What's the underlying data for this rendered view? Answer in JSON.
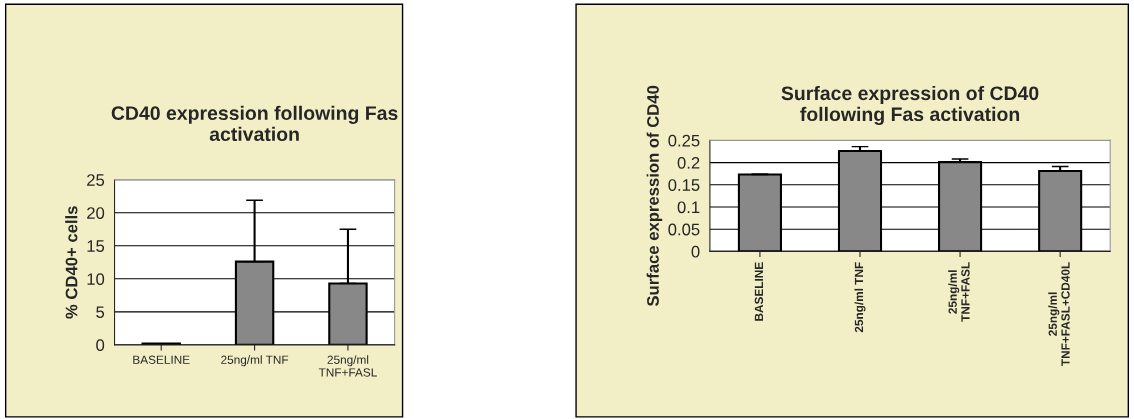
{
  "chart_data": [
    {
      "type": "bar",
      "title": "CD40 expression following Fas\nactivation",
      "ylabel": "% CD40+ cells",
      "categories": [
        "BASELINE",
        "25ng/ml TNF",
        "25ng/ml\nTNF+FASL"
      ],
      "values": [
        0.2,
        12.6,
        9.3
      ],
      "errors": [
        null,
        [
          12.6,
          21.9
        ],
        [
          9.3,
          17.5
        ]
      ],
      "color": "#888888",
      "ylim": [
        0,
        25
      ],
      "yticks": [
        0,
        5,
        10,
        15,
        20,
        25
      ],
      "grid": "y"
    },
    {
      "type": "bar",
      "title": "Surface expression of CD40\nfollowing Fas activation",
      "ylabel": "Surface expression of CD40",
      "categories": [
        "BASELINE",
        "25ng/ml TNF",
        "25ng/ml\nTNF+FASL",
        "25ng/ml\nTNF+FASL+CD40L"
      ],
      "values": [
        0.173,
        0.226,
        0.201,
        0.181
      ],
      "errors": [
        [
          0.173,
          0.174
        ],
        [
          0.226,
          0.236
        ],
        [
          0.201,
          0.208
        ],
        [
          0.181,
          0.191
        ]
      ],
      "color": "#888888",
      "ylim": [
        0,
        0.25
      ],
      "yticks": [
        0,
        0.05,
        0.1,
        0.15,
        0.2,
        0.25
      ],
      "grid": "y"
    }
  ]
}
